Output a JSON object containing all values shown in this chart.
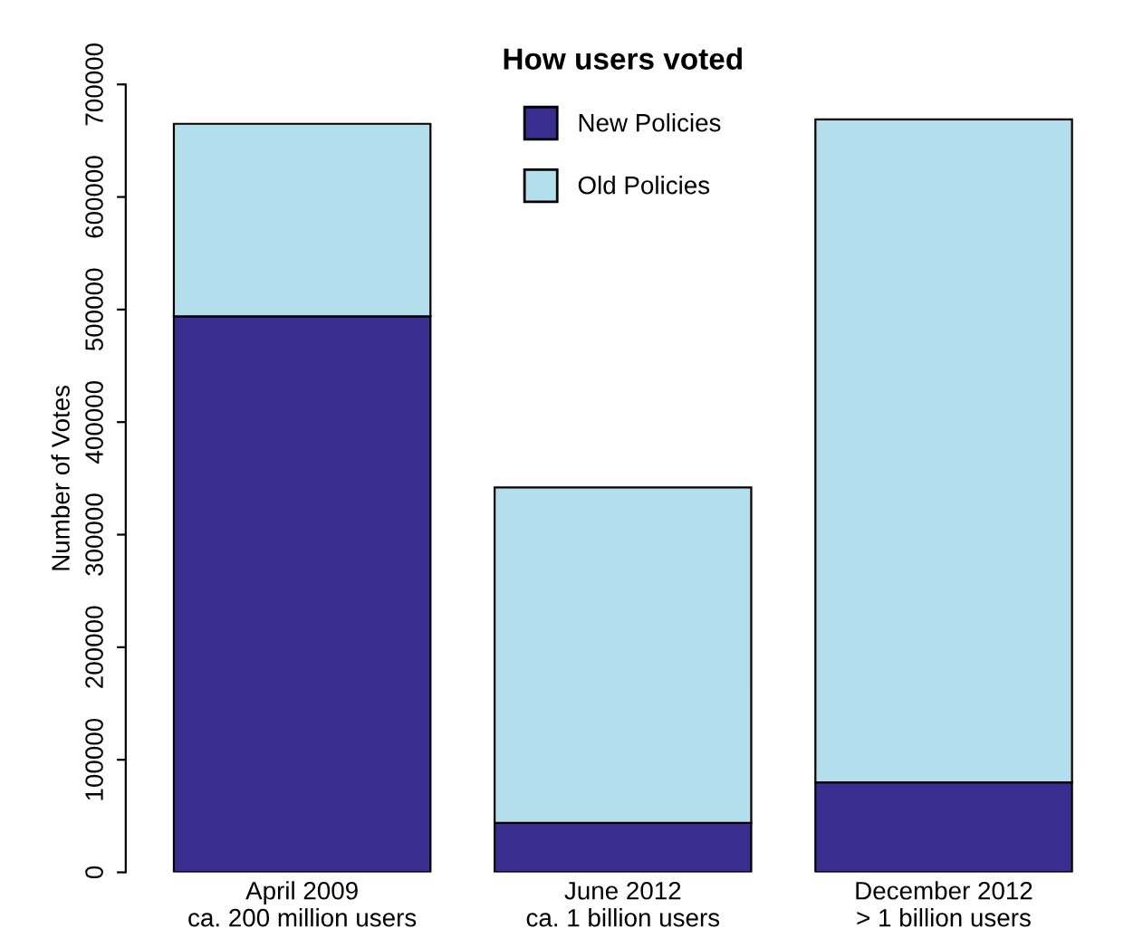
{
  "chart_data": {
    "type": "bar",
    "title": "How users voted",
    "ylabel": "Number of Votes",
    "stacked": true,
    "categories": [
      "April 2009\nca. 200 million users",
      "June 2012\nca. 1 billion users",
      "December 2012\n> 1 billion users"
    ],
    "series": [
      {
        "name": "New Policies",
        "color": "#3a2d8f",
        "values": [
          494000,
          44000,
          80000
        ]
      },
      {
        "name": "Old Policies",
        "color": "#b3deeb",
        "values": [
          171000,
          298000,
          589000
        ]
      }
    ],
    "ylim": [
      0,
      700000
    ],
    "yticks": [
      0,
      100000,
      200000,
      300000,
      400000,
      500000,
      600000,
      700000
    ],
    "grid": false,
    "legend": "top"
  }
}
